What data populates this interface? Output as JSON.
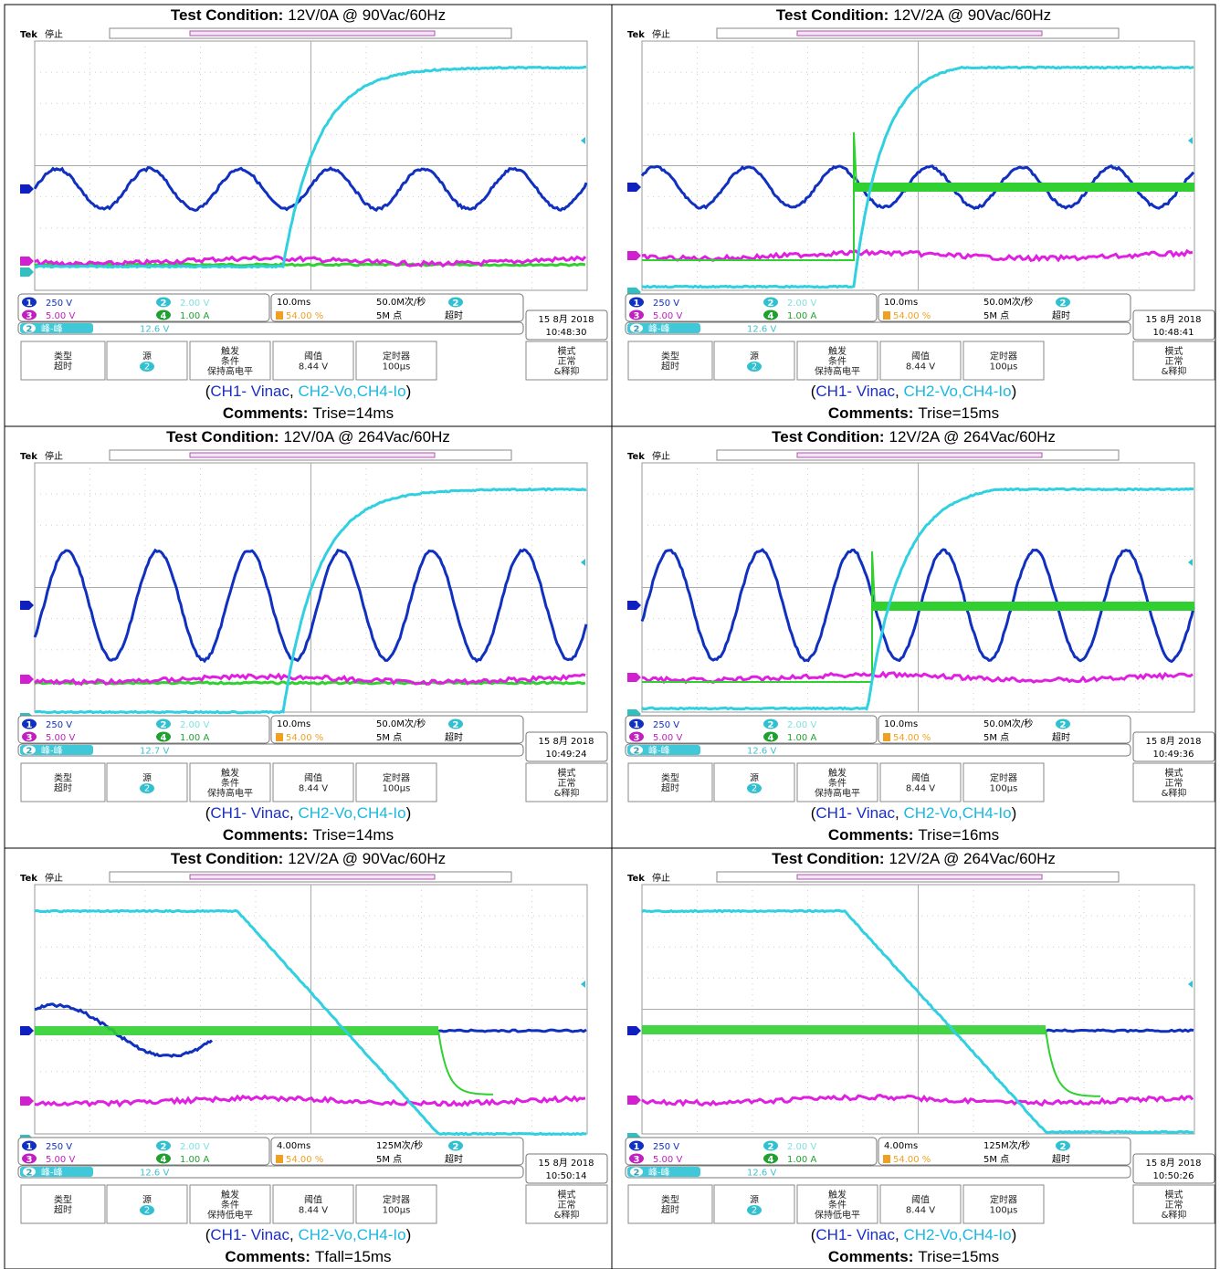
{
  "cells": [
    {
      "condition_label": "Test Condition:",
      "condition": "12V/0A @ 90Vac/60Hz",
      "brand": "Tek",
      "state": "停止",
      "channels": [
        {
          "n": "1",
          "scale": "250 V"
        },
        {
          "n": "2",
          "scale": "2.00 V"
        },
        {
          "n": "3",
          "scale": "5.00 V"
        },
        {
          "n": "4",
          "scale": "1.00 A"
        }
      ],
      "measure_channel": "2",
      "measure_label": "峰-峰",
      "measure": "12.6 V",
      "timebase": "10.0ms",
      "trigger_level": "54.00 %",
      "sample_rate": "50.0M次/秒",
      "record": "5M 点",
      "trigger_channel": "2",
      "trigger_mode": "超时",
      "date": "15 8月 2018",
      "time": "10:48:30",
      "menu": [
        [
          "类型",
          "超时"
        ],
        [
          "源",
          "2"
        ],
        [
          "触发",
          "条件",
          "保持高电平"
        ],
        [
          "阈值",
          "8.44 V"
        ],
        [
          "定时器",
          "100μs"
        ],
        [
          "模式",
          "正常",
          "&释抑"
        ]
      ],
      "legend": [
        "(",
        "CH1- Vinac",
        ", ",
        "CH2-Vo,CH4-Io",
        ")"
      ],
      "comments_label": "Comments:",
      "comments": "Trise=14ms"
    },
    {
      "condition_label": "Test Condition:",
      "condition": "12V/2A @ 90Vac/60Hz",
      "brand": "Tek",
      "state": "停止",
      "channels": [
        {
          "n": "1",
          "scale": "250 V"
        },
        {
          "n": "2",
          "scale": "2.00 V"
        },
        {
          "n": "3",
          "scale": "5.00 V"
        },
        {
          "n": "4",
          "scale": "1.00 A"
        }
      ],
      "measure_channel": "2",
      "measure_label": "峰-峰",
      "measure": "12.6 V",
      "timebase": "10.0ms",
      "trigger_level": "54.00 %",
      "sample_rate": "50.0M次/秒",
      "record": "5M 点",
      "trigger_channel": "2",
      "trigger_mode": "超时",
      "date": "15 8月 2018",
      "time": "10:48:41",
      "menu": [
        [
          "类型",
          "超时"
        ],
        [
          "源",
          "2"
        ],
        [
          "触发",
          "条件",
          "保持高电平"
        ],
        [
          "阈值",
          "8.44 V"
        ],
        [
          "定时器",
          "100μs"
        ],
        [
          "模式",
          "正常",
          "&释抑"
        ]
      ],
      "legend": [
        "(",
        "CH1- Vinac",
        ", ",
        "CH2-Vo,CH4-Io",
        ")"
      ],
      "comments_label": "Comments:",
      "comments": "Trise=15ms"
    },
    {
      "condition_label": "Test Condition:",
      "condition": "12V/0A @ 264Vac/60Hz",
      "brand": "Tek",
      "state": "停止",
      "channels": [
        {
          "n": "1",
          "scale": "250 V"
        },
        {
          "n": "2",
          "scale": "2.00 V"
        },
        {
          "n": "3",
          "scale": "5.00 V"
        },
        {
          "n": "4",
          "scale": "1.00 A"
        }
      ],
      "measure_channel": "2",
      "measure_label": "峰-峰",
      "measure": "12.7 V",
      "timebase": "10.0ms",
      "trigger_level": "54.00 %",
      "sample_rate": "50.0M次/秒",
      "record": "5M 点",
      "trigger_channel": "2",
      "trigger_mode": "超时",
      "date": "15 8月 2018",
      "time": "10:49:24",
      "menu": [
        [
          "类型",
          "超时"
        ],
        [
          "源",
          "2"
        ],
        [
          "触发",
          "条件",
          "保持高电平"
        ],
        [
          "阈值",
          "8.44 V"
        ],
        [
          "定时器",
          "100μs"
        ],
        [
          "模式",
          "正常",
          "&释抑"
        ]
      ],
      "legend": [
        "(",
        "CH1- Vinac",
        ", ",
        "CH2-Vo,CH4-Io",
        ")"
      ],
      "comments_label": "Comments:",
      "comments": "Trise=14ms"
    },
    {
      "condition_label": "Test Condition:",
      "condition": "12V/2A @ 264Vac/60Hz",
      "brand": "Tek",
      "state": "停止",
      "channels": [
        {
          "n": "1",
          "scale": "250 V"
        },
        {
          "n": "2",
          "scale": "2.00 V"
        },
        {
          "n": "3",
          "scale": "5.00 V"
        },
        {
          "n": "4",
          "scale": "1.00 A"
        }
      ],
      "measure_channel": "2",
      "measure_label": "峰-峰",
      "measure": "12.6 V",
      "timebase": "10.0ms",
      "trigger_level": "54.00 %",
      "sample_rate": "50.0M次/秒",
      "record": "5M 点",
      "trigger_channel": "2",
      "trigger_mode": "超时",
      "date": "15 8月 2018",
      "time": "10:49:36",
      "menu": [
        [
          "类型",
          "超时"
        ],
        [
          "源",
          "2"
        ],
        [
          "触发",
          "条件",
          "保持高电平"
        ],
        [
          "阈值",
          "8.44 V"
        ],
        [
          "定时器",
          "100μs"
        ],
        [
          "模式",
          "正常",
          "&释抑"
        ]
      ],
      "legend": [
        "(",
        "CH1- Vinac",
        ", ",
        "CH2-Vo,CH4-Io",
        ")"
      ],
      "comments_label": "Comments:",
      "comments": "Trise=16ms"
    },
    {
      "condition_label": "Test Condition:",
      "condition": "12V/2A @ 90Vac/60Hz",
      "brand": "Tek",
      "state": "停止",
      "channels": [
        {
          "n": "1",
          "scale": "250 V"
        },
        {
          "n": "2",
          "scale": "2.00 V"
        },
        {
          "n": "3",
          "scale": "5.00 V"
        },
        {
          "n": "4",
          "scale": "1.00 A"
        }
      ],
      "measure_channel": "2",
      "measure_label": "峰-峰",
      "measure": "12.6 V",
      "timebase": "4.00ms",
      "trigger_level": "54.00 %",
      "sample_rate": "125M次/秒",
      "record": "5M 点",
      "trigger_channel": "2",
      "trigger_mode": "超时",
      "date": "15 8月 2018",
      "time": "10:50:14",
      "menu": [
        [
          "类型",
          "超时"
        ],
        [
          "源",
          "2"
        ],
        [
          "触发",
          "条件",
          "保持低电平"
        ],
        [
          "阈值",
          "8.44 V"
        ],
        [
          "定时器",
          "100μs"
        ],
        [
          "模式",
          "正常",
          "&释抑"
        ]
      ],
      "legend": [
        "(",
        "CH1- Vinac",
        ", ",
        "CH2-Vo,CH4-Io",
        ")"
      ],
      "comments_label": "Comments:",
      "comments": "Tfall=15ms"
    },
    {
      "condition_label": "Test Condition:",
      "condition": "12V/2A @ 264Vac/60Hz",
      "brand": "Tek",
      "state": "停止",
      "channels": [
        {
          "n": "1",
          "scale": "250 V"
        },
        {
          "n": "2",
          "scale": "2.00 V"
        },
        {
          "n": "3",
          "scale": "5.00 V"
        },
        {
          "n": "4",
          "scale": "1.00 A"
        }
      ],
      "measure_channel": "2",
      "measure_label": "峰-峰",
      "measure": "12.6 V",
      "timebase": "4.00ms",
      "trigger_level": "54.00 %",
      "sample_rate": "125M次/秒",
      "record": "5M 点",
      "trigger_channel": "2",
      "trigger_mode": "超时",
      "date": "15 8月 2018",
      "time": "10:50:26",
      "menu": [
        [
          "类型",
          "超时"
        ],
        [
          "源",
          "2"
        ],
        [
          "触发",
          "条件",
          "保持低电平"
        ],
        [
          "阈值",
          "8.44 V"
        ],
        [
          "定时器",
          "100μs"
        ],
        [
          "模式",
          "正常",
          "&释抑"
        ]
      ],
      "legend": [
        "(",
        "CH1- Vinac",
        ", ",
        "CH2-Vo,CH4-Io",
        ")"
      ],
      "comments_label": "Comments:",
      "comments": "Trise=15ms"
    }
  ]
}
